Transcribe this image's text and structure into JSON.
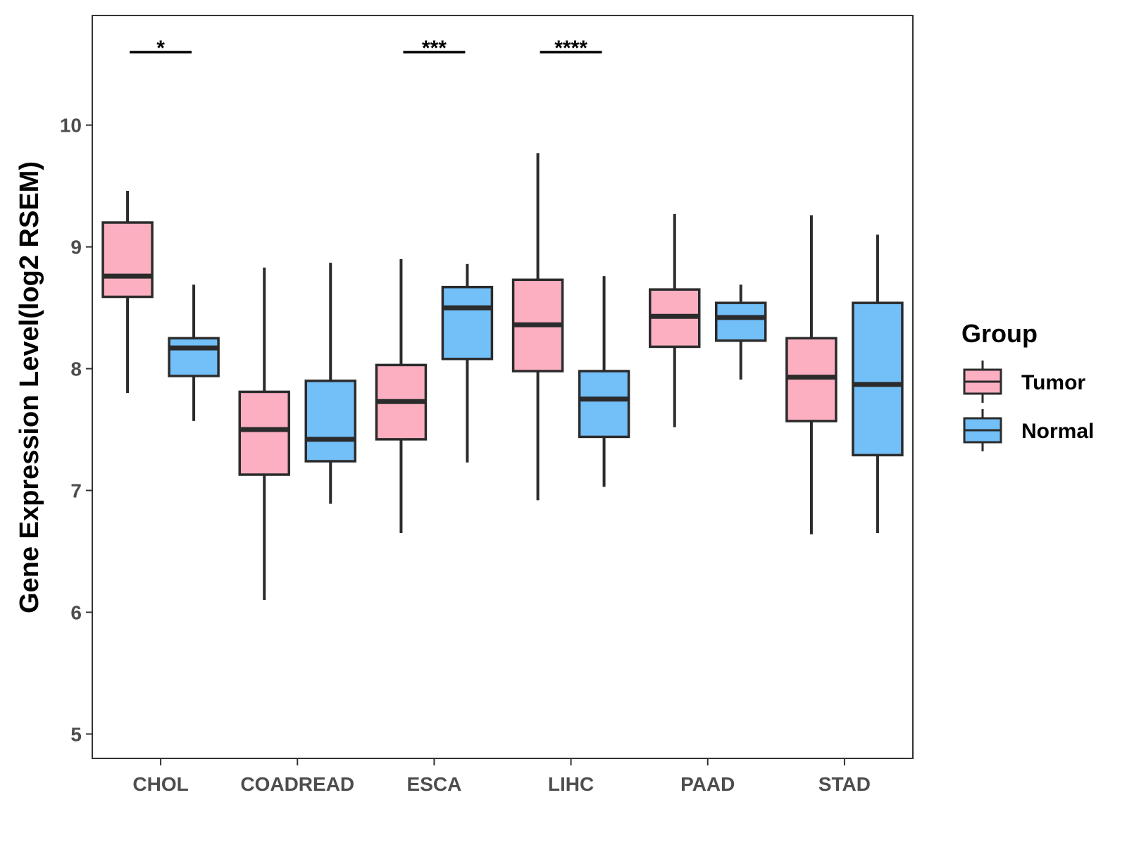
{
  "chart_data": {
    "type": "box",
    "ylabel": "Gene Expression Level(log2 RSEM)",
    "xlabel": "",
    "ylim": [
      4.8,
      10.9
    ],
    "yticks": [
      5,
      6,
      7,
      8,
      9,
      10
    ],
    "categories": [
      "CHOL",
      "COADREAD",
      "ESCA",
      "LIHC",
      "PAAD",
      "STAD"
    ],
    "grid": false,
    "legend": {
      "title": "Group",
      "placement": "right",
      "entries": [
        {
          "name": "Tumor",
          "color": "#FBAFC0"
        },
        {
          "name": "Normal",
          "color": "#73BFF8"
        }
      ]
    },
    "series": [
      {
        "name": "Tumor",
        "color": "#FBAFC0",
        "boxes": [
          {
            "min": 7.8,
            "q1": 8.59,
            "median": 8.76,
            "q3": 9.2,
            "max": 9.46
          },
          {
            "min": 6.1,
            "q1": 7.13,
            "median": 7.5,
            "q3": 7.81,
            "max": 8.83
          },
          {
            "min": 6.65,
            "q1": 7.42,
            "median": 7.73,
            "q3": 8.03,
            "max": 8.9
          },
          {
            "min": 6.92,
            "q1": 7.98,
            "median": 8.36,
            "q3": 8.73,
            "max": 9.77
          },
          {
            "min": 7.52,
            "q1": 8.18,
            "median": 8.43,
            "q3": 8.65,
            "max": 9.27
          },
          {
            "min": 6.64,
            "q1": 7.57,
            "median": 7.93,
            "q3": 8.25,
            "max": 9.26
          }
        ]
      },
      {
        "name": "Normal",
        "color": "#73BFF8",
        "boxes": [
          {
            "min": 7.57,
            "q1": 7.94,
            "median": 8.17,
            "q3": 8.25,
            "max": 8.69
          },
          {
            "min": 6.89,
            "q1": 7.24,
            "median": 7.42,
            "q3": 7.9,
            "max": 8.87
          },
          {
            "min": 7.23,
            "q1": 8.08,
            "median": 8.5,
            "q3": 8.67,
            "max": 8.86
          },
          {
            "min": 7.03,
            "q1": 7.44,
            "median": 7.75,
            "q3": 7.98,
            "max": 8.76
          },
          {
            "min": 7.91,
            "q1": 8.23,
            "median": 8.42,
            "q3": 8.54,
            "max": 8.69
          },
          {
            "min": 6.65,
            "q1": 7.29,
            "median": 7.87,
            "q3": 8.54,
            "max": 9.1
          }
        ]
      }
    ],
    "significance": [
      {
        "category": "CHOL",
        "label": "*"
      },
      {
        "category": "ESCA",
        "label": "***"
      },
      {
        "category": "LIHC",
        "label": "****"
      }
    ]
  }
}
